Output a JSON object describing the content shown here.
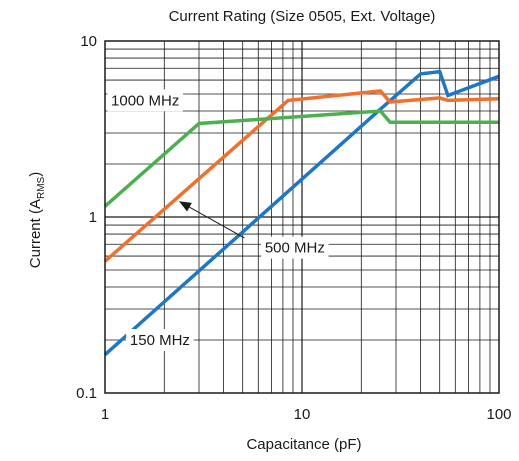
{
  "chart_data": {
    "type": "line",
    "title": "Current Rating (Size 0505, Ext. Voltage)",
    "xlabel": "Capacitance (pF)",
    "ylabel_main": "Current (A",
    "ylabel_sub": "RMS",
    "ylabel_close": ")",
    "x_scale": "log",
    "y_scale": "log",
    "xlim": [
      1,
      100
    ],
    "ylim": [
      0.1,
      10
    ],
    "x_ticks": [
      {
        "value": 1,
        "label": "1"
      },
      {
        "value": 10,
        "label": "10"
      },
      {
        "value": 100,
        "label": "100"
      }
    ],
    "y_ticks": [
      {
        "value": 0.1,
        "label": "0.1"
      },
      {
        "value": 1,
        "label": "1"
      },
      {
        "value": 10,
        "label": "10"
      }
    ],
    "grid": "major and minor",
    "series": [
      {
        "name": "150 MHz",
        "color": "#1f77c4",
        "points": [
          [
            1,
            0.165
          ],
          [
            25,
            4.1
          ],
          [
            40,
            6.5
          ],
          [
            50,
            6.7
          ],
          [
            55,
            4.9
          ],
          [
            100,
            6.3
          ]
        ]
      },
      {
        "name": "500 MHz",
        "color": "#f07030",
        "points": [
          [
            1,
            0.56
          ],
          [
            8.5,
            4.6
          ],
          [
            25,
            5.2
          ],
          [
            28,
            4.5
          ],
          [
            50,
            4.75
          ],
          [
            55,
            4.6
          ],
          [
            100,
            4.7
          ]
        ]
      },
      {
        "name": "1000 MHz",
        "color": "#4caf50",
        "points": [
          [
            1,
            1.15
          ],
          [
            3,
            3.4
          ],
          [
            25,
            4.0
          ],
          [
            28,
            3.45
          ],
          [
            100,
            3.45
          ]
        ]
      }
    ],
    "annotations": [
      {
        "text": "1000 MHz",
        "x": 1.6,
        "y": 4.6
      },
      {
        "text": "500 MHz",
        "x": 9.2,
        "y": 0.67
      },
      {
        "text": "150 MHz",
        "x": 1.9,
        "y": 0.2
      }
    ],
    "arrow": {
      "from": [
        5.1,
        0.76
      ],
      "to": [
        2.4,
        1.22
      ]
    }
  }
}
